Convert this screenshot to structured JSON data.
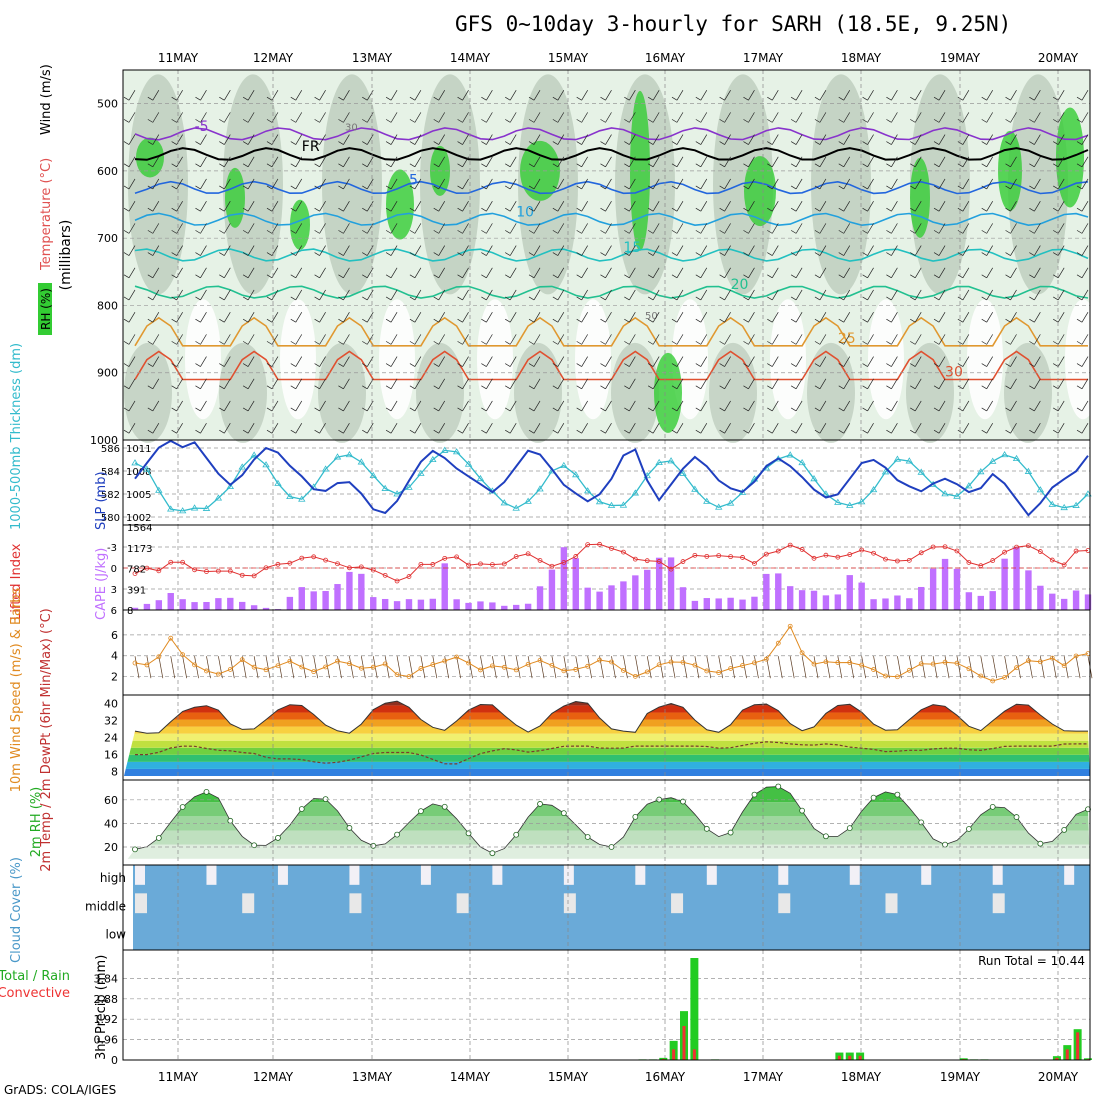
{
  "title": "GFS 0~10day 3-hourly for SARH (18.5E, 9.25N)",
  "footer": "GrADS: COLA/IGES",
  "colors": {
    "rh_green": "#33cc33",
    "rh_light": "#e6f2e6",
    "rh_grey": "#b9c9b9",
    "thickness": "#33bbcc",
    "slp": "#1f3fbf",
    "lifted": "#e03030",
    "cape": "#c070ff",
    "wind10": "#e08a20",
    "barbs10": "#5a3a20",
    "rh2m": "#33cc33",
    "cloud": "#6aaad8",
    "cloud_gap": "#e8e8e8",
    "precip_total": "#22cc22",
    "precip_conv": "#ee3333"
  },
  "chart_data": [
    {
      "panel": "upper-air",
      "type": "heatmap",
      "ylabel": "(millibars)",
      "legend_labels": [
        "RH (%)",
        "Temperature (°C)",
        "Wind (m/s)"
      ],
      "x_ticks": [
        "11MAY",
        "12MAY",
        "13MAY",
        "14MAY",
        "15MAY",
        "16MAY",
        "17MAY",
        "18MAY",
        "19MAY",
        "20MAY"
      ],
      "y_ticks": [
        500,
        600,
        700,
        800,
        900,
        1000
      ],
      "ylim": [
        450,
        1000
      ],
      "isotherms": [
        {
          "label": "-5",
          "level_mb": 545,
          "color": "#8833cc"
        },
        {
          "label": "FR",
          "level_mb": 575,
          "color": "#000000"
        },
        {
          "label": "5",
          "level_mb": 625,
          "color": "#2266dd"
        },
        {
          "label": "10",
          "level_mb": 672,
          "color": "#22a0dd"
        },
        {
          "label": "15",
          "level_mb": 725,
          "color": "#22c0c0"
        },
        {
          "label": "20",
          "level_mb": 780,
          "color": "#22c090"
        },
        {
          "label": "25",
          "level_mb": 860,
          "color": "#e09830"
        },
        {
          "label": "30",
          "level_mb": 910,
          "color": "#e05030"
        }
      ],
      "rh_labels": [
        "30",
        "50"
      ]
    },
    {
      "panel": "thickness-slp",
      "type": "line",
      "ylabel_left": "1000-500mb Thickness (dm)",
      "ylabel_right": "SLP (mb)",
      "y_ticks_left": [
        580,
        582,
        584,
        586
      ],
      "y_ticks_right": [
        1002,
        1005,
        1008,
        1011
      ],
      "series": [
        {
          "name": "Thickness",
          "axis": "left",
          "values": [
            584.7,
            584.2,
            582.4,
            580.7,
            580.5,
            580.8,
            580.6,
            581.5,
            582.3,
            584.0,
            585.5,
            585.0,
            583.3,
            582.0,
            581.3,
            582.0,
            583.6,
            585.0,
            585.5,
            585.3,
            584.2,
            583.0,
            582.0,
            582.0,
            583.0,
            584.3,
            585.4,
            586.0,
            585.5,
            584.2,
            583.0,
            582.0,
            581.0,
            580.7,
            581.5,
            582.6,
            584.2,
            584.5,
            583.6,
            582.2,
            581.3,
            581.0,
            581.0,
            582.0,
            583.5,
            584.7,
            585.0,
            584.0,
            582.6,
            581.5,
            580.8,
            581.0,
            581.8,
            583.0,
            584.0,
            584.8,
            585.5,
            585.2,
            584.0,
            582.4,
            581.5,
            581.0,
            581.0,
            581.6,
            583.0,
            584.6,
            585.3,
            584.6,
            583.5,
            582.5,
            581.8,
            581.8,
            583.0,
            584.2,
            585.0,
            585.5,
            585.0,
            583.8,
            582.2,
            581.0,
            580.8,
            581.0,
            582.0
          ]
        },
        {
          "name": "SLP",
          "axis": "right",
          "values": [
            1007,
            1009,
            1011,
            1012,
            1011,
            1012,
            1010,
            1008,
            1006,
            1007,
            1009,
            1011,
            1011,
            1009,
            1008,
            1006,
            1005,
            1006,
            1007,
            1006,
            1004,
            1002,
            1003,
            1005,
            1008,
            1010,
            1011,
            1009,
            1008,
            1007,
            1006,
            1005,
            1007,
            1009,
            1011,
            1010,
            1008,
            1006,
            1005,
            1004,
            1005,
            1007,
            1010,
            1011,
            1007,
            1004,
            1006,
            1008,
            1010,
            1009,
            1007,
            1006,
            1005,
            1006,
            1008,
            1010,
            1009,
            1008,
            1006,
            1005,
            1004,
            1006,
            1008,
            1010,
            1009,
            1008,
            1006,
            1006,
            1005,
            1007,
            1007,
            1006,
            1005,
            1006,
            1008,
            1006,
            1004,
            1002,
            1004,
            1006,
            1007,
            1008,
            1010
          ]
        }
      ]
    },
    {
      "panel": "lifted-cape",
      "type": "bar",
      "ylabel_left": "Lifted Index",
      "ylabel_right": "CAPE (J/kg)",
      "y_ticks_left": [
        -3,
        0,
        3,
        6
      ],
      "y_ticks_right": [
        8,
        391,
        782,
        1173,
        1564
      ],
      "series": [
        {
          "name": "CAPE",
          "values": [
            50,
            120,
            180,
            340,
            220,
            160,
            140,
            220,
            260,
            180,
            120,
            60,
            30,
            20,
            500,
            380,
            340,
            380,
            560,
            800,
            640,
            120,
            240,
            160,
            220,
            200,
            220,
            900,
            210,
            140,
            170,
            160,
            80,
            120,
            40,
            400,
            590,
            1150,
            1250,
            550,
            260,
            460,
            480,
            600,
            700,
            800,
            1090,
            950,
            240,
            160,
            250,
            220,
            240,
            200,
            260,
            690,
            700,
            460,
            380,
            380,
            300,
            200,
            670,
            640,
            230,
            170,
            320,
            220,
            240,
            660,
            900,
            1020,
            610,
            180,
            320,
            380,
            1180,
            1190,
            650,
            430,
            300,
            210,
            380,
            300
          ]
        },
        {
          "name": "Lifted Index",
          "values": [
            0.8,
            0,
            0.5,
            -0.8,
            -1,
            0.2,
            0.5,
            0.5,
            0.3,
            0.8,
            1.5,
            0.5,
            -0.8,
            -0.2,
            -1.2,
            -1.6,
            -1.6,
            -0.8,
            -0.5,
            0.2,
            -0.3,
            0.5,
            1.2,
            2,
            1.1,
            -0.7,
            -0.5,
            -1.4,
            -1.6,
            -0.4,
            -0.6,
            -0.5,
            -0.4,
            -1.5,
            -2.2,
            -1.5,
            0,
            -0.8,
            -0.8,
            -3,
            -3.8,
            -2.9,
            -2.7,
            -1.9,
            -0.8,
            -1.2,
            -0.8,
            0.6,
            -1.5,
            -1.9,
            -1.6,
            -1.8,
            -1.6,
            -1.5,
            -0.6,
            -2,
            -2.4,
            -3.3,
            -2.8,
            -1.3,
            -1.9,
            -1.5,
            -1.7,
            -2.6,
            -2.5,
            -1.3,
            -1.2,
            -0.7,
            -1.6,
            -2.8,
            -3.2,
            -2.9,
            -2.1,
            0,
            -0.5,
            -1.3,
            -2.6,
            -3.1,
            -3.2,
            -2.2,
            -1,
            -0.4,
            -2.5,
            -2.5
          ]
        }
      ]
    },
    {
      "panel": "wind10m",
      "type": "line",
      "ylabel": "10m Wind Speed (m/s) & Barbs",
      "y_ticks": [
        2,
        4,
        6
      ],
      "series": [
        {
          "name": "10m Wind Speed",
          "values": [
            3.3,
            3.1,
            3.8,
            5.8,
            4.2,
            3.2,
            2.6,
            2.2,
            2.4,
            3.8,
            3.0,
            2.6,
            2.8,
            3.6,
            3.2,
            2.4,
            2.6,
            3.4,
            3.6,
            2.8,
            2.8,
            3.0,
            3.4,
            1.2,
            2.6,
            2.9,
            3.3,
            3.6,
            4.0,
            3.0,
            2.5,
            3.2,
            2.8,
            2.6,
            3.3,
            3.6,
            3.0,
            2.5,
            2.7,
            3.0,
            3.6,
            3.4,
            2.6,
            2.0,
            2.4,
            3.1,
            3.4,
            3.4,
            3.2,
            2.6,
            2.3,
            2.7,
            3.0,
            3.2,
            3.6,
            3.8,
            7.8,
            5.2,
            2.9,
            3.6,
            3.2,
            3.5,
            3.2,
            3.0,
            2.4,
            1.8,
            2.1,
            2.9,
            3.4,
            3.1,
            3.5,
            3.2,
            2.6,
            1.9,
            1.5,
            2.0,
            3.0,
            3.6,
            3.4,
            3.8,
            3.0,
            4.0,
            4.2
          ]
        }
      ]
    },
    {
      "panel": "temp2m",
      "type": "area",
      "ylabel": "2m Temp / 2m DewPt (6hr Min/Max) (°C)",
      "y_ticks": [
        8,
        16,
        24,
        32,
        40
      ],
      "series": [
        {
          "name": "2m Temp",
          "values": [
            27,
            26,
            26,
            31,
            36,
            38,
            39,
            38,
            31,
            28,
            27,
            31,
            36,
            39,
            40,
            37,
            31,
            28,
            26,
            26,
            35,
            39,
            41,
            41,
            36,
            30,
            28,
            27,
            34,
            38,
            40,
            39,
            33,
            29,
            26,
            30,
            36,
            39,
            41,
            40,
            33,
            28,
            27,
            26,
            35,
            38,
            40,
            39,
            33,
            28,
            26,
            28,
            36,
            39,
            40,
            39,
            32,
            28,
            26,
            33,
            38,
            40,
            39,
            33,
            28,
            27,
            28,
            35,
            38,
            40,
            38,
            33,
            28,
            27,
            33,
            37,
            40,
            39,
            34,
            30,
            27,
            27,
            27
          ]
        },
        {
          "name": "2m DewPt",
          "values": [
            16,
            16,
            17,
            19,
            20,
            20,
            19,
            18,
            18,
            17,
            17,
            15,
            14,
            14,
            14,
            13,
            12,
            12,
            13,
            14,
            16,
            17,
            17,
            17,
            17,
            15,
            13,
            11,
            12,
            15,
            17,
            18,
            19,
            18,
            17,
            18,
            19,
            20,
            20,
            20,
            19,
            19,
            19,
            20,
            20,
            20,
            20,
            20,
            20,
            20,
            19,
            19,
            20,
            21,
            22,
            22,
            21,
            21,
            20,
            21,
            21,
            20,
            19,
            19,
            18,
            17,
            18,
            18,
            18,
            19,
            19,
            19,
            18,
            18,
            19,
            20,
            20,
            20,
            20,
            20,
            21,
            21,
            21
          ]
        }
      ]
    },
    {
      "panel": "rh2m",
      "type": "area",
      "ylabel": "2m RH (%)",
      "y_ticks": [
        20,
        40,
        60
      ],
      "series": [
        {
          "name": "2m RH",
          "values": [
            18,
            20,
            27,
            40,
            53,
            62,
            67,
            65,
            45,
            31,
            22,
            20,
            25,
            34,
            48,
            60,
            63,
            57,
            42,
            29,
            22,
            20,
            25,
            35,
            45,
            54,
            58,
            52,
            40,
            28,
            17,
            14,
            20,
            33,
            48,
            58,
            55,
            48,
            38,
            28,
            22,
            20,
            28,
            45,
            56,
            60,
            62,
            60,
            50,
            37,
            29,
            28,
            45,
            62,
            70,
            72,
            70,
            58,
            40,
            30,
            28,
            30,
            42,
            58,
            65,
            68,
            62,
            48,
            37,
            22,
            22,
            27,
            38,
            50,
            55,
            53,
            44,
            30,
            22,
            25,
            35,
            48,
            52
          ]
        }
      ]
    },
    {
      "panel": "cloud",
      "type": "table",
      "ylabel": "Cloud Cover (%)",
      "rows": [
        "high",
        "middle",
        "low"
      ]
    },
    {
      "panel": "precip",
      "type": "bar",
      "ylabel": "3hr Precip (mm)",
      "legend_labels": [
        "Total / Rain",
        "Convective"
      ],
      "y_ticks": [
        0,
        0.96,
        1.92,
        2.88,
        3.84
      ],
      "run_total_text": "Run Total = 10.44",
      "series": [
        {
          "name": "Total",
          "values": [
            0,
            0,
            0,
            0,
            0,
            0,
            0,
            0,
            0,
            0,
            0,
            0,
            0,
            0,
            0,
            0,
            0,
            0,
            0,
            0,
            0,
            0,
            0,
            0,
            0,
            0,
            0,
            0,
            0,
            0,
            0,
            0,
            0,
            0,
            0,
            0,
            0,
            0,
            0,
            0,
            0,
            0,
            0,
            0,
            0,
            0,
            0,
            0,
            0,
            0.03,
            0.03,
            0.1,
            0.9,
            2.3,
            4.8,
            0,
            0.03,
            0,
            0,
            0,
            0,
            0,
            0,
            0.02,
            0,
            0,
            0,
            0,
            0.35,
            0.35,
            0.35,
            0,
            0,
            0,
            0,
            0,
            0,
            0.02,
            0,
            0,
            0.08,
            0.03,
            0.03,
            0,
            0,
            0,
            0,
            0,
            0,
            0.18,
            0.7,
            1.45,
            0.08
          ]
        },
        {
          "name": "Convective",
          "values": [
            0,
            0,
            0,
            0,
            0,
            0,
            0,
            0,
            0,
            0,
            0,
            0,
            0,
            0,
            0,
            0,
            0,
            0,
            0,
            0,
            0,
            0,
            0,
            0,
            0,
            0,
            0,
            0,
            0,
            0,
            0,
            0,
            0,
            0,
            0,
            0,
            0,
            0,
            0,
            0,
            0,
            0,
            0,
            0,
            0,
            0,
            0,
            0,
            0,
            0.01,
            0.01,
            0.05,
            0.5,
            1.6,
            0.5,
            0,
            0.01,
            0,
            0,
            0,
            0,
            0,
            0,
            0.01,
            0,
            0,
            0,
            0,
            0.2,
            0.2,
            0.2,
            0,
            0,
            0,
            0,
            0,
            0,
            0.01,
            0,
            0,
            0.04,
            0.01,
            0.01,
            0,
            0,
            0,
            0,
            0,
            0,
            0.1,
            0.5,
            1.3,
            0.04
          ]
        }
      ]
    }
  ]
}
